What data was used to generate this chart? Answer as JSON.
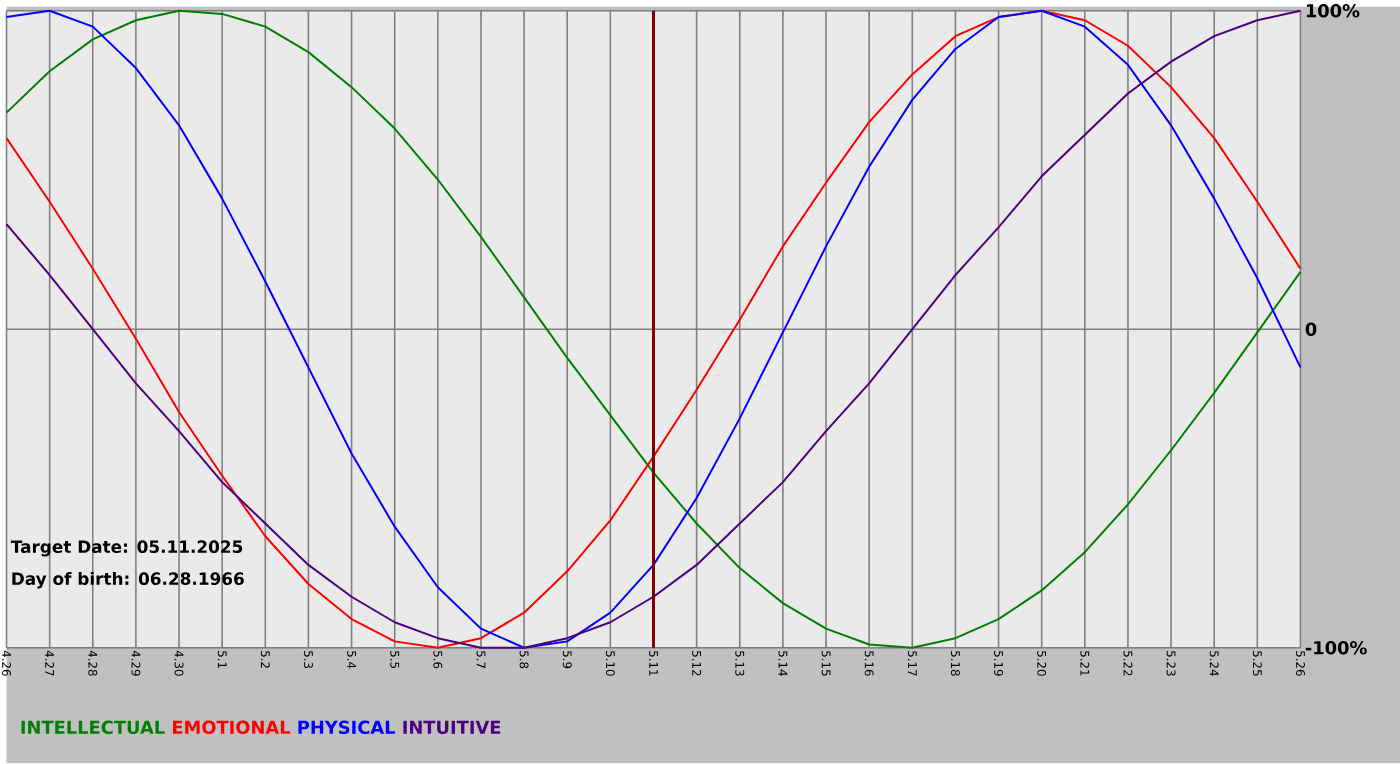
{
  "chart_data": {
    "type": "line",
    "categories": [
      "4.26",
      "4.27",
      "4.28",
      "4.29",
      "4.30",
      "5.1",
      "5.2",
      "5.3",
      "5.4",
      "5.5",
      "5.6",
      "5.7",
      "5.8",
      "5.9",
      "5.10",
      "5.11",
      "5.12",
      "5.13",
      "5.14",
      "5.15",
      "5.16",
      "5.17",
      "5.18",
      "5.19",
      "5.20",
      "5.21",
      "5.22",
      "5.23",
      "5.24",
      "5.25",
      "5.26"
    ],
    "series": [
      {
        "name": "INTELLECTUAL",
        "color": "#008000",
        "values": [
          68,
          81,
          91,
          97,
          100,
          99,
          95,
          87,
          76,
          63,
          47,
          29,
          10,
          -9,
          -27,
          -45,
          -61,
          -75,
          -86,
          -94,
          -99,
          -100,
          -97,
          -91,
          -82,
          -70,
          -55,
          -38,
          -20,
          -1,
          18
        ]
      },
      {
        "name": "EMOTIONAL",
        "color": "#ff0000",
        "values": [
          60,
          40,
          19,
          -3,
          -26,
          -46,
          -65,
          -80,
          -91,
          -98,
          -100,
          -97,
          -89,
          -76,
          -60,
          -40,
          -19,
          3,
          26,
          46,
          65,
          80,
          92,
          98,
          100,
          97,
          89,
          76,
          60,
          40,
          19
        ]
      },
      {
        "name": "PHYSICAL",
        "color": "#0000ff",
        "values": [
          98,
          100,
          95,
          82,
          64,
          41,
          15,
          -12,
          -39,
          -62,
          -81,
          -94,
          -100,
          -98,
          -89,
          -74,
          -53,
          -28,
          -1,
          26,
          51,
          72,
          88,
          98,
          100,
          95,
          83,
          64,
          41,
          16,
          -12
        ]
      },
      {
        "name": "INTUITIVE",
        "color": "#4b0082",
        "values": [
          33,
          17,
          0,
          -17,
          -32,
          -48,
          -61,
          -74,
          -84,
          -92,
          -97,
          -100,
          -100,
          -97,
          -92,
          -84,
          -74,
          -61,
          -48,
          -32,
          -17,
          0,
          17,
          32,
          48,
          61,
          74,
          84,
          92,
          97,
          100
        ]
      }
    ],
    "ylim": [
      -100,
      100
    ],
    "yticks": [
      {
        "value": 100,
        "label": "100%"
      },
      0,
      {
        "value": -100,
        "label": "-100%"
      }
    ],
    "grid": true,
    "legend": "bottom",
    "ref_lines": [
      {
        "axis": "x",
        "value": "5.11",
        "color": "#800000"
      }
    ],
    "annotations": [
      "Target Date: 05.11.2025",
      "Day of birth: 06.28.1966"
    ]
  }
}
